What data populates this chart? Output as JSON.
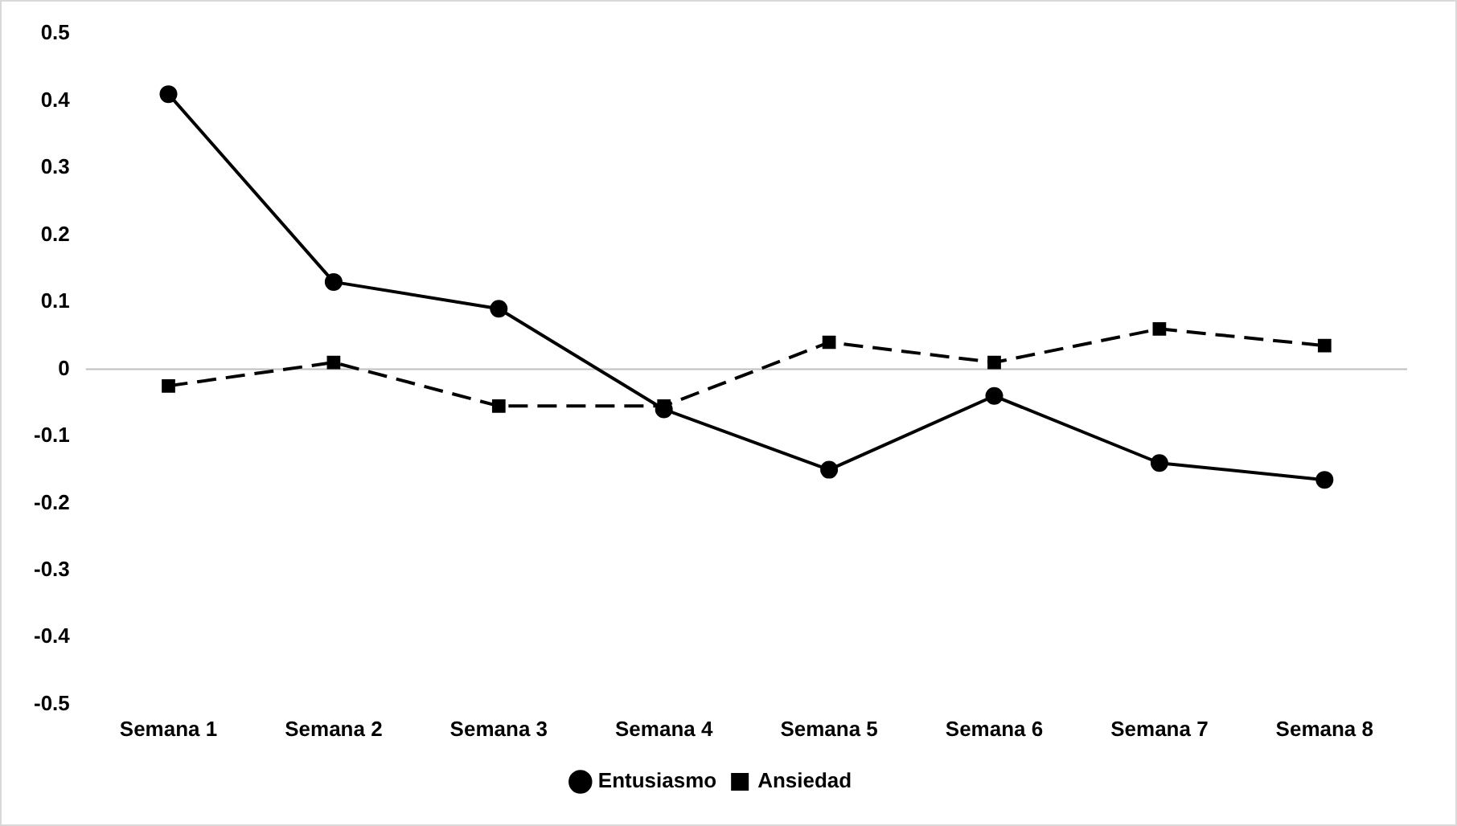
{
  "chart_data": {
    "type": "line",
    "categories": [
      "Semana 1",
      "Semana 2",
      "Semana 3",
      "Semana 4",
      "Semana 5",
      "Semana 6",
      "Semana 7",
      "Semana 8"
    ],
    "series": [
      {
        "name": "Entusiasmo",
        "color": "#000000",
        "marker": "circle",
        "line_style": "solid",
        "values": [
          0.41,
          0.13,
          0.09,
          -0.06,
          -0.15,
          -0.04,
          -0.14,
          -0.165
        ]
      },
      {
        "name": "Ansiedad",
        "color": "#000000",
        "marker": "square",
        "line_style": "dashed",
        "values": [
          -0.025,
          0.01,
          -0.055,
          -0.055,
          0.04,
          0.01,
          0.06,
          0.035
        ]
      }
    ],
    "ylim": [
      -0.5,
      0.5
    ],
    "yticks": [
      -0.5,
      -0.4,
      -0.3,
      -0.2,
      -0.1,
      0,
      0.1,
      0.2,
      0.3,
      0.4,
      0.5
    ],
    "grid": false,
    "legend": "bottom",
    "ref_lines": [
      {
        "axis": "y",
        "value": 0,
        "color": "#bfbfbf"
      }
    ]
  }
}
